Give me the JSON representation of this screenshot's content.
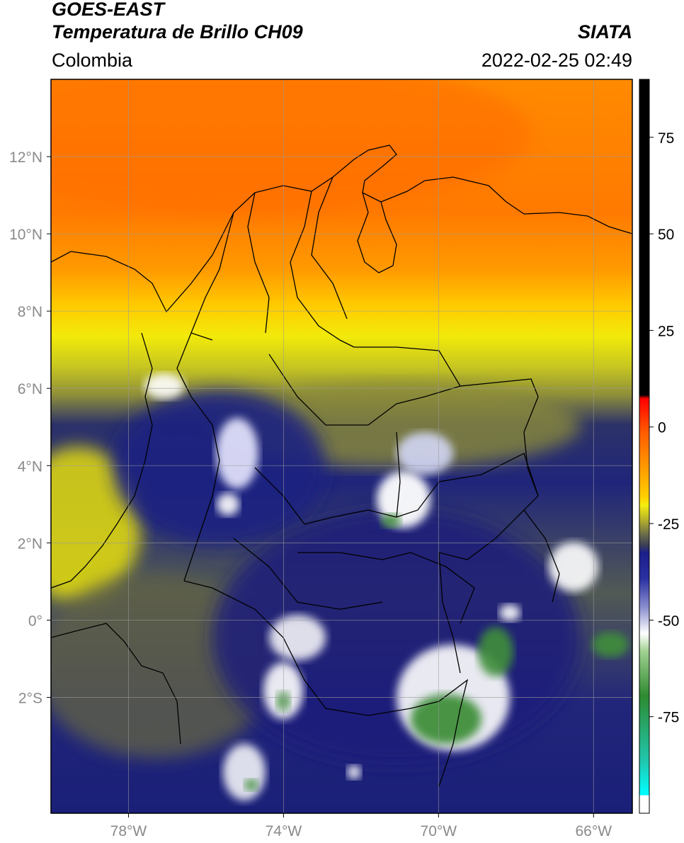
{
  "header": {
    "satellite": "GOES-EAST",
    "product": "Temperatura de Brillo CH09",
    "organization": "SIATA",
    "region": "Colombia",
    "timestamp": "2022-02-25 02:49"
  },
  "map": {
    "lon_range": [
      -80,
      -65
    ],
    "lat_range": [
      -5,
      14
    ],
    "lon_ticks": [
      {
        "value": -78,
        "label": "78°W"
      },
      {
        "value": -74,
        "label": "74°W"
      },
      {
        "value": -70,
        "label": "70°W"
      },
      {
        "value": -66,
        "label": "66°W"
      }
    ],
    "lat_ticks": [
      {
        "value": 12,
        "label": "12°N"
      },
      {
        "value": 10,
        "label": "10°N"
      },
      {
        "value": 8,
        "label": "8°N"
      },
      {
        "value": 6,
        "label": "6°N"
      },
      {
        "value": 4,
        "label": "4°N"
      },
      {
        "value": 2,
        "label": "2°N"
      },
      {
        "value": 0,
        "label": "0°"
      },
      {
        "value": -2,
        "label": "2°S"
      }
    ],
    "colors": {
      "orange": "#ff8c00",
      "deep_orange": "#ff6a00",
      "yellow": "#f2ea0a",
      "olive": "#8a8a3a",
      "navy": "#1a1f7a",
      "white": "#ffffff",
      "green": "#3f8f3a"
    }
  },
  "colorbar": {
    "range": [
      -100,
      90
    ],
    "ticks": [
      {
        "value": 75,
        "label": "75"
      },
      {
        "value": 50,
        "label": "50"
      },
      {
        "value": 25,
        "label": "25"
      },
      {
        "value": 0,
        "label": "0"
      },
      {
        "value": -25,
        "label": "-25"
      },
      {
        "value": -50,
        "label": "-50"
      },
      {
        "value": -75,
        "label": "-75"
      }
    ]
  }
}
